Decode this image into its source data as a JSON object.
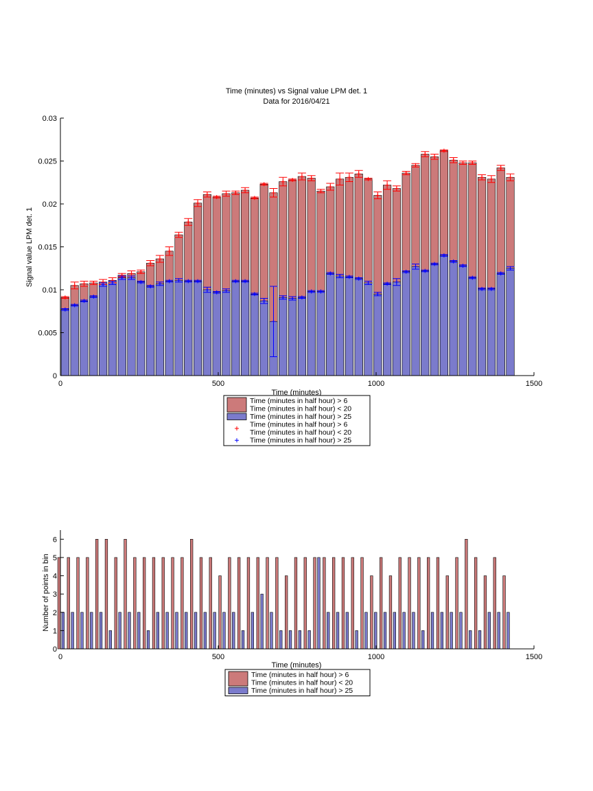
{
  "chart_data": [
    {
      "type": "bar",
      "title": "Time (minutes) vs Signal value LPM det. 1",
      "subtitle": "Data for 2016/04/21",
      "xlabel": "Time (minutes)",
      "ylabel": "Signal value LPM det. 1",
      "xlim": [
        0,
        1500
      ],
      "ylim": [
        0,
        0.03
      ],
      "xticks": [
        0,
        500,
        1000,
        1500
      ],
      "xtick_labels": [
        "0",
        "500",
        "1000",
        "1500"
      ],
      "yticks": [
        0,
        0.005,
        0.01,
        0.015,
        0.02,
        0.025,
        0.03
      ],
      "ytick_labels": [
        "0",
        "0.005",
        "0.01",
        "0.015",
        "0.02",
        "0.025",
        "0.03"
      ],
      "grid": false,
      "legend_position": "below",
      "x": [
        15,
        45,
        75,
        105,
        135,
        165,
        195,
        225,
        255,
        285,
        315,
        345,
        375,
        405,
        435,
        465,
        495,
        525,
        555,
        585,
        615,
        645,
        675,
        705,
        735,
        765,
        795,
        825,
        855,
        885,
        915,
        945,
        975,
        1005,
        1035,
        1065,
        1095,
        1125,
        1155,
        1185,
        1215,
        1245,
        1275,
        1305,
        1335,
        1365,
        1395,
        1425
      ],
      "series": [
        {
          "name": "Time (minutes in half hour) > 6\nTime (minutes in half hour) < 20",
          "color": "#cc7a7a",
          "values": [
            0.0091,
            0.0105,
            0.0107,
            0.0108,
            0.0109,
            0.0111,
            0.0117,
            0.0119,
            0.0121,
            0.0131,
            0.0136,
            0.0145,
            0.0164,
            0.0179,
            0.0201,
            0.0211,
            0.0208,
            0.0212,
            0.0213,
            0.0216,
            0.0207,
            0.0223,
            0.0213,
            0.0226,
            0.0228,
            0.0232,
            0.023,
            0.0215,
            0.022,
            0.0229,
            0.0231,
            0.0235,
            0.0229,
            0.021,
            0.0222,
            0.0218,
            0.0236,
            0.0245,
            0.0258,
            0.0255,
            0.0262,
            0.0251,
            0.0248,
            0.0248,
            0.0231,
            0.0229,
            0.0242,
            0.0231
          ],
          "errors": [
            0.0001,
            0.0004,
            0.0003,
            0.0002,
            0.0003,
            0.0003,
            0.0002,
            0.0003,
            0.0002,
            0.0003,
            0.0004,
            0.0005,
            0.0003,
            0.0004,
            0.0004,
            0.0003,
            0.0001,
            0.0003,
            0.0002,
            0.0003,
            0.0001,
            0.0001,
            0.0005,
            0.0005,
            0.0001,
            0.0004,
            0.0003,
            0.0002,
            0.0004,
            0.0007,
            0.0005,
            0.0004,
            0.0001,
            0.0004,
            0.0005,
            0.0003,
            0.0002,
            0.0002,
            0.0003,
            0.0003,
            0.0001,
            0.0003,
            0.0002,
            0.0002,
            0.0003,
            0.0004,
            0.0003,
            0.0004
          ]
        },
        {
          "name": "Time (minutes in half hour) > 25",
          "color": "#7b7bcc",
          "values": [
            0.0077,
            0.0082,
            0.0087,
            0.0092,
            0.0106,
            0.0108,
            0.0114,
            0.0114,
            0.0109,
            0.0104,
            0.0107,
            0.011,
            0.0111,
            0.011,
            0.011,
            0.01,
            0.0097,
            0.0099,
            0.011,
            0.011,
            0.0095,
            0.0087,
            0.0063,
            0.0091,
            0.009,
            0.0091,
            0.0098,
            0.0098,
            0.0119,
            0.0116,
            0.0115,
            0.0113,
            0.0108,
            0.0095,
            0.0107,
            0.0109,
            0.0121,
            0.0127,
            0.0122,
            0.013,
            0.014,
            0.0133,
            0.0128,
            0.0114,
            0.0101,
            0.0101,
            0.0119,
            0.0125
          ],
          "errors": [
            0.0001,
            0.0001,
            0.0001,
            0.0001,
            0.0002,
            0.0002,
            0.0002,
            0.0002,
            0.0001,
            0.0001,
            0.0002,
            0.0001,
            0.0002,
            0.0001,
            0.0001,
            0.0003,
            0.0001,
            0.0002,
            0.0001,
            0.0001,
            0.0001,
            0.0003,
            0.0041,
            0.0002,
            0.0002,
            0.0001,
            0.0001,
            0.0001,
            0.0001,
            0.0002,
            0.0001,
            0.0001,
            0.0002,
            0.0002,
            0.0001,
            0.0004,
            0.0001,
            0.0003,
            0.0001,
            0.0001,
            0.0001,
            0.0001,
            0.0001,
            0.0001,
            0.0001,
            0.0001,
            0.0001,
            0.0002
          ]
        }
      ],
      "legend": [
        {
          "kind": "bar",
          "color": "#cc7a7a",
          "lines": [
            "Time (minutes in half hour) > 6",
            "Time (minutes in half hour) < 20"
          ]
        },
        {
          "kind": "bar",
          "color": "#7b7bcc",
          "lines": [
            "Time (minutes in half hour) > 25"
          ]
        },
        {
          "kind": "marker",
          "marker": "+",
          "color": "#ff0000",
          "lines": [
            "Time (minutes in half hour) > 6",
            "Time (minutes in half hour) < 20"
          ]
        },
        {
          "kind": "marker",
          "marker": "+",
          "color": "#0000ff",
          "lines": [
            "Time (minutes in half hour) > 25"
          ]
        }
      ]
    },
    {
      "type": "bar",
      "title": "",
      "xlabel": "Time (minutes)",
      "ylabel": "Number of points in bin",
      "xlim": [
        0,
        1500
      ],
      "ylim": [
        0,
        6.5
      ],
      "xticks": [
        0,
        500,
        1000,
        1500
      ],
      "xtick_labels": [
        "0",
        "500",
        "1000",
        "1500"
      ],
      "yticks": [
        0,
        1,
        2,
        3,
        4,
        5,
        6
      ],
      "ytick_labels": [
        "0",
        "1",
        "2",
        "3",
        "4",
        "5",
        "6"
      ],
      "grid": false,
      "legend_position": "below",
      "x": [
        15,
        45,
        75,
        105,
        135,
        165,
        195,
        225,
        255,
        285,
        315,
        345,
        375,
        405,
        435,
        465,
        495,
        525,
        555,
        585,
        615,
        645,
        675,
        705,
        735,
        765,
        795,
        825,
        855,
        885,
        915,
        945,
        975,
        1005,
        1035,
        1065,
        1095,
        1125,
        1155,
        1185,
        1215,
        1245,
        1275,
        1305,
        1335,
        1365,
        1395,
        1425
      ],
      "series": [
        {
          "name": "Time (minutes in half hour) > 6\nTime (minutes in half hour) < 20",
          "color": "#cc7a7a",
          "values": [
            5,
            5,
            5,
            5,
            6,
            6,
            5,
            6,
            5,
            5,
            5,
            5,
            5,
            5,
            6,
            5,
            5,
            4,
            5,
            5,
            5,
            5,
            5,
            5,
            4,
            5,
            5,
            5,
            5,
            5,
            5,
            5,
            5,
            4,
            5,
            4,
            5,
            5,
            5,
            5,
            5,
            4,
            5,
            6,
            5,
            4,
            5,
            4
          ]
        },
        {
          "name": "Time (minutes in half hour) > 25",
          "color": "#7b7bcc",
          "values": [
            2,
            2,
            2,
            2,
            2,
            1,
            2,
            2,
            2,
            1,
            2,
            2,
            2,
            2,
            2,
            2,
            2,
            2,
            2,
            1,
            2,
            3,
            2,
            1,
            1,
            1,
            1,
            5,
            2,
            2,
            2,
            1,
            2,
            2,
            2,
            2,
            2,
            2,
            1,
            2,
            2,
            2,
            2,
            1,
            1,
            2,
            2,
            2
          ]
        }
      ],
      "legend": [
        {
          "kind": "bar",
          "color": "#cc7a7a",
          "lines": [
            "Time (minutes in half hour) > 6",
            "Time (minutes in half hour) < 20"
          ]
        },
        {
          "kind": "bar",
          "color": "#7b7bcc",
          "lines": [
            "Time (minutes in half hour) > 25"
          ]
        }
      ]
    }
  ]
}
